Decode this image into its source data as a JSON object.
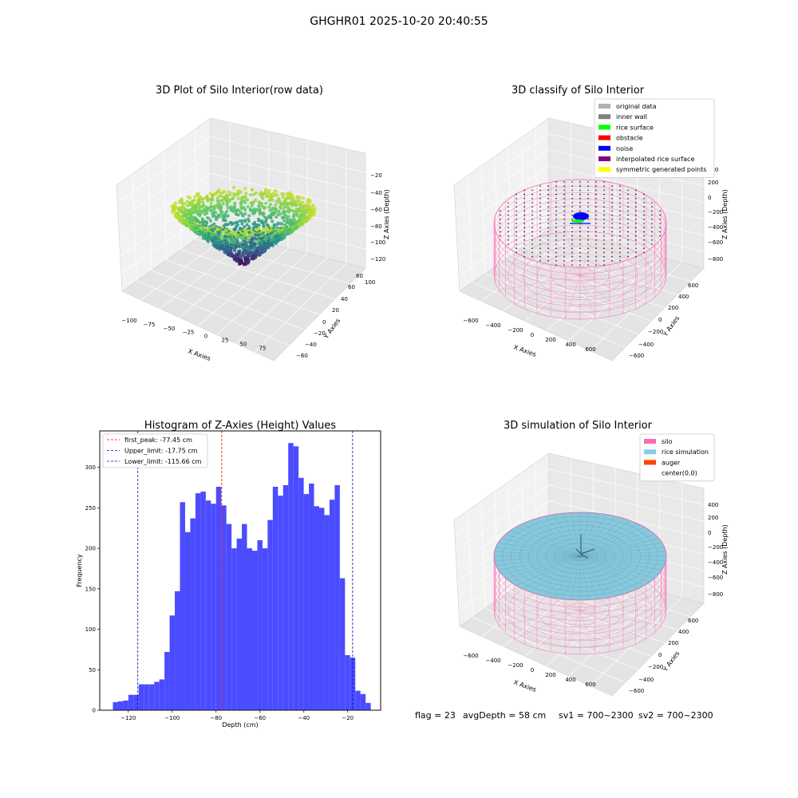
{
  "figure_title": "GHGHR01 2025-10-20 20:40:55",
  "footer": {
    "flag": "flag = 23",
    "avg_depth": "avgDepth = 58 cm",
    "sv1": "sv1 = 700~2300",
    "sv2": "sv2 = 700~2300"
  },
  "chart_data": [
    {
      "type": "scatter",
      "title": "3D Plot of Silo Interior(row data)",
      "xlabel": "X Axies",
      "ylabel": "Y Axies",
      "zlabel": "Z Axies (Depth)",
      "xticks": [
        "−100",
        "−75",
        "−50",
        "−25",
        "0",
        "25",
        "50",
        "75"
      ],
      "yticks": [
        "−60",
        "−40",
        "−20",
        "0",
        "20",
        "40",
        "60",
        "80",
        "100"
      ],
      "zticks": [
        "−20",
        "−40",
        "−60",
        "−80",
        "−100",
        "−120"
      ],
      "xlim": [
        -110,
        80
      ],
      "ylim": [
        -65,
        100
      ],
      "zlim": [
        -130,
        -10
      ],
      "colormap": "viridis",
      "grid": true
    },
    {
      "type": "scatter",
      "title": "3D classify of Silo Interior",
      "xlabel": "X Axies",
      "ylabel": "Y Axies",
      "zlabel": "Z Axies (Depth)",
      "xticks": [
        "−600",
        "−400",
        "−200",
        "0",
        "200",
        "400",
        "600"
      ],
      "yticks": [
        "−600",
        "−400",
        "−200",
        "0",
        "200",
        "400",
        "600"
      ],
      "zticks": [
        "400",
        "200",
        "0",
        "−200",
        "−400",
        "−600",
        "−800"
      ],
      "legend_position": "top-right",
      "legend": [
        {
          "label": "original data",
          "color": "#b0b0b0"
        },
        {
          "label": "inner wall",
          "color": "#808080"
        },
        {
          "label": "rice surface",
          "color": "#00ff00"
        },
        {
          "label": "obstacle",
          "color": "#ff0000"
        },
        {
          "label": "noise",
          "color": "#0000ff"
        },
        {
          "label": "interpolated rice surface",
          "color": "#800080"
        },
        {
          "label": "symmetric generated points",
          "color": "#ffff00"
        }
      ],
      "grid": true
    },
    {
      "type": "bar",
      "title": "Histogram of Z-Axies (Height) Values",
      "xlabel": "Depth (cm)",
      "ylabel": "Frequency",
      "xlim": [
        -133,
        -5
      ],
      "ylim": [
        0,
        345
      ],
      "xticks": [
        -120,
        -100,
        -80,
        -60,
        -40,
        -20
      ],
      "yticks": [
        0,
        50,
        100,
        150,
        200,
        250,
        300
      ],
      "bin_start": -127,
      "bin_width": 2.35,
      "values": [
        10,
        11,
        12,
        19,
        19,
        32,
        32,
        32,
        35,
        38,
        72,
        117,
        147,
        257,
        220,
        237,
        268,
        270,
        259,
        255,
        276,
        253,
        230,
        200,
        212,
        230,
        200,
        197,
        210,
        200,
        235,
        276,
        265,
        278,
        330,
        326,
        287,
        267,
        280,
        252,
        250,
        241,
        260,
        278,
        163,
        68,
        65,
        24,
        20,
        9
      ],
      "bar_color": "#4b4bff",
      "lines": [
        {
          "label": "first_peak: -77.45 cm",
          "x": -77.45,
          "color": "#ff0000"
        },
        {
          "label": "Upper_limit: -17.75 cm",
          "x": -17.75,
          "color": "#0000cc"
        },
        {
          "label": "Lower_limit: -115.66 cm",
          "x": -115.66,
          "color": "#0000cc"
        }
      ],
      "legend_position": "top-left"
    },
    {
      "type": "scatter",
      "title": "3D simulation of Silo Interior",
      "xlabel": "X Axies",
      "ylabel": "Y Axies",
      "zlabel": "Z Axies (Depth)",
      "xticks": [
        "−600",
        "−400",
        "−200",
        "0",
        "200",
        "400",
        "600"
      ],
      "yticks": [
        "−600",
        "−400",
        "−200",
        "0",
        "200",
        "400",
        "600"
      ],
      "zticks": [
        "400",
        "200",
        "0",
        "−200",
        "−400",
        "−600",
        "−800"
      ],
      "legend_position": "top-right",
      "legend": [
        {
          "label": "silo",
          "color": "#ff69b4"
        },
        {
          "label": "rice simulation",
          "color": "#87ceeb"
        },
        {
          "label": "auger",
          "color": "#ff4500"
        },
        {
          "label": "center(0,0)",
          "color": "none"
        }
      ],
      "grid": true
    }
  ]
}
